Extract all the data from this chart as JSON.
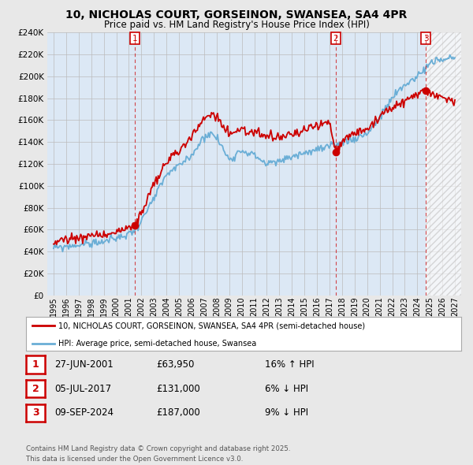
{
  "title": "10, NICHOLAS COURT, GORSEINON, SWANSEA, SA4 4PR",
  "subtitle": "Price paid vs. HM Land Registry's House Price Index (HPI)",
  "ylim": [
    0,
    240000
  ],
  "yticks": [
    0,
    20000,
    40000,
    60000,
    80000,
    100000,
    120000,
    140000,
    160000,
    180000,
    200000,
    220000,
    240000
  ],
  "background_color": "#e8e8e8",
  "plot_bg_color": "#dce8f5",
  "hpi_color": "#6aaed6",
  "price_color": "#cc0000",
  "vline_color": "#cc0000",
  "hatch_color": "#c0c0c0",
  "transactions": [
    {
      "num": 1,
      "date_num": 2001.5,
      "price": 63950,
      "label": "27-JUN-2001",
      "pct": "16%",
      "dir": "↑"
    },
    {
      "num": 2,
      "date_num": 2017.5,
      "price": 131000,
      "label": "05-JUL-2017",
      "pct": "6%",
      "dir": "↓"
    },
    {
      "num": 3,
      "date_num": 2024.68,
      "price": 187000,
      "label": "09-SEP-2024",
      "pct": "9%",
      "dir": "↓"
    }
  ],
  "legend_house": "10, NICHOLAS COURT, GORSEINON, SWANSEA, SA4 4PR (semi-detached house)",
  "legend_hpi": "HPI: Average price, semi-detached house, Swansea",
  "footer": "Contains HM Land Registry data © Crown copyright and database right 2025.\nThis data is licensed under the Open Government Licence v3.0.",
  "grid_color": "#bbbbbb",
  "xlim_left": 1994.5,
  "xlim_right": 2027.5
}
